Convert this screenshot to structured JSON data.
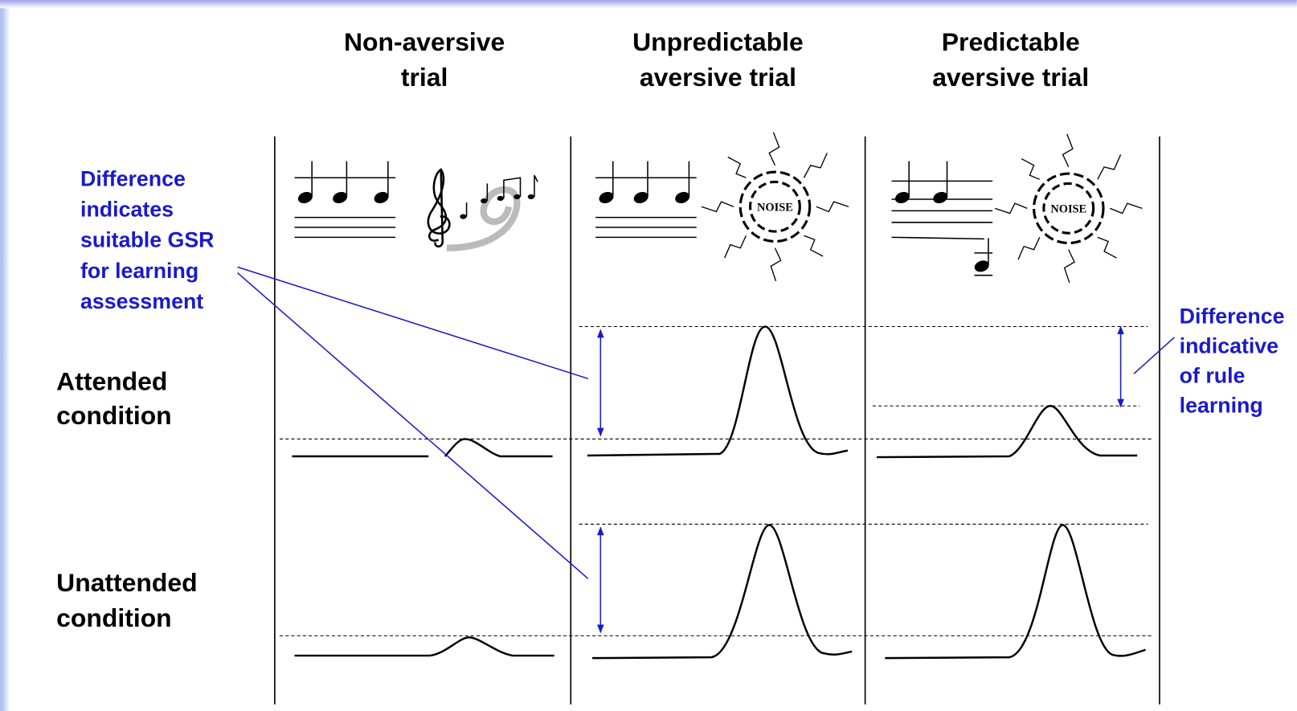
{
  "columns": [
    {
      "lines": [
        "Non-aversive",
        "trial"
      ]
    },
    {
      "lines": [
        "Unpredictable",
        "aversive trial"
      ]
    },
    {
      "lines": [
        "Predictable",
        "aversive trial"
      ]
    }
  ],
  "rows": [
    {
      "lines": [
        "Attended",
        "condition"
      ]
    },
    {
      "lines": [
        "Unattended",
        "condition"
      ]
    }
  ],
  "notes": {
    "gsr": {
      "lines": [
        "Difference",
        "indicates",
        "suitable GSR",
        "for learning",
        "assessment"
      ]
    },
    "rule": {
      "lines": [
        "Difference",
        "indicative",
        "of rule",
        "learning"
      ]
    }
  },
  "icons": {
    "noise_labels": [
      "NOISE",
      "NOISE"
    ]
  }
}
